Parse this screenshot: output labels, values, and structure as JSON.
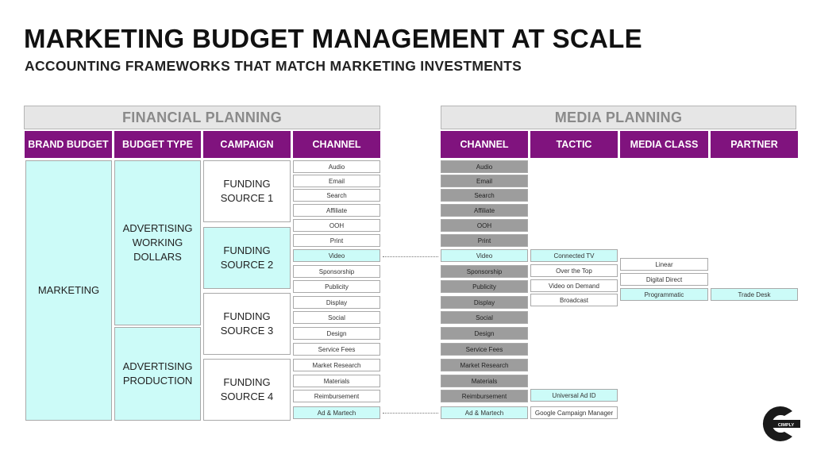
{
  "title": "MARKETING BUDGET MANAGEMENT AT SCALE",
  "subtitle": "ACCOUNTING FRAMEWORKS THAT MATCH MARKETING INVESTMENTS",
  "financial": {
    "section_label": "FINANCIAL PLANNING",
    "headers": [
      "BRAND BUDGET",
      "BUDGET TYPE",
      "CAMPAIGN",
      "CHANNEL"
    ],
    "brand_budget": "MARKETING",
    "budget_types": [
      {
        "label": "ADVERTISING WORKING DOLLARS"
      },
      {
        "label": "ADVERTISING PRODUCTION"
      }
    ],
    "funding_sources": [
      {
        "label": "FUNDING SOURCE 1",
        "highlight": false
      },
      {
        "label": "FUNDING SOURCE 2",
        "highlight": true
      },
      {
        "label": "FUNDING SOURCE 3",
        "highlight": false
      },
      {
        "label": "FUNDING SOURCE 4",
        "highlight": false
      }
    ],
    "channels": [
      {
        "label": "Audio",
        "highlight": false
      },
      {
        "label": "Email",
        "highlight": false
      },
      {
        "label": "Search",
        "highlight": false
      },
      {
        "label": "Affiliate",
        "highlight": false
      },
      {
        "label": "OOH",
        "highlight": false
      },
      {
        "label": "Print",
        "highlight": false
      },
      {
        "label": "Video",
        "highlight": true
      },
      {
        "label": "Sponsorship",
        "highlight": false
      },
      {
        "label": "Publicity",
        "highlight": false
      },
      {
        "label": "Display",
        "highlight": false
      },
      {
        "label": "Social",
        "highlight": false
      },
      {
        "label": "Design",
        "highlight": false
      },
      {
        "label": "Service Fees",
        "highlight": false
      },
      {
        "label": "Market Research",
        "highlight": false
      },
      {
        "label": "Materials",
        "highlight": false
      },
      {
        "label": "Reimbursement",
        "highlight": false
      },
      {
        "label": "Ad & Martech",
        "highlight": true
      }
    ]
  },
  "media": {
    "section_label": "MEDIA PLANNING",
    "headers": [
      "CHANNEL",
      "TACTIC",
      "MEDIA CLASS",
      "PARTNER"
    ],
    "channels": [
      {
        "label": "Audio",
        "highlight": false
      },
      {
        "label": "Email",
        "highlight": false
      },
      {
        "label": "Search",
        "highlight": false
      },
      {
        "label": "Affiliate",
        "highlight": false
      },
      {
        "label": "OOH",
        "highlight": false
      },
      {
        "label": "Print",
        "highlight": false
      },
      {
        "label": "Video",
        "highlight": true
      },
      {
        "label": "Sponsorship",
        "highlight": false
      },
      {
        "label": "Publicity",
        "highlight": false
      },
      {
        "label": "Display",
        "highlight": false
      },
      {
        "label": "Social",
        "highlight": false
      },
      {
        "label": "Design",
        "highlight": false
      },
      {
        "label": "Service Fees",
        "highlight": false
      },
      {
        "label": "Market Research",
        "highlight": false
      },
      {
        "label": "Materials",
        "highlight": false
      },
      {
        "label": "Reimbursement",
        "highlight": false
      },
      {
        "label": "Ad & Martech",
        "highlight": true
      }
    ],
    "video_tactics": [
      {
        "label": "Connected TV",
        "highlight": true
      },
      {
        "label": "Over the Top",
        "highlight": false
      },
      {
        "label": "Video on Demand",
        "highlight": false
      },
      {
        "label": "Broadcast",
        "highlight": false
      }
    ],
    "martech_tactics": [
      {
        "label": "Universal Ad ID",
        "highlight": true
      },
      {
        "label": "Google Campaign Manager",
        "highlight": false
      }
    ],
    "media_classes": [
      {
        "label": "Linear",
        "highlight": false
      },
      {
        "label": "Digital Direct",
        "highlight": false
      },
      {
        "label": "Programmatic",
        "highlight": true
      }
    ],
    "partner": {
      "label": "Trade Desk",
      "highlight": true
    }
  },
  "colors": {
    "header_purple": "#80137e",
    "highlight_cyan": "#ccfbf8",
    "media_channel_gray": "#9d9d9d",
    "section_gray": "#e6e6e6"
  },
  "logo": {
    "icon": "cimply-logo-icon",
    "text": "CIMPLY"
  }
}
